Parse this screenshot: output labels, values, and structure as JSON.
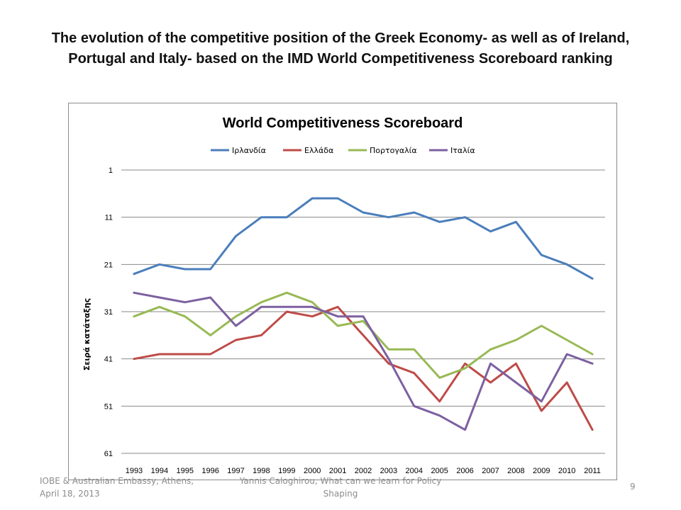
{
  "slide": {
    "title": "The evolution of the competitive position of the Greek Economy- as well as of Ireland, Portugal and Italy- based on the IMD   World Competitiveness Scoreboard ranking",
    "footer_left": "IOBE & Australian Embassy, Athens, April 18, 2013",
    "footer_center": "Yannis Caloghirou, What can we learn for Policy Shaping",
    "page_number": "9"
  },
  "chart_data": {
    "type": "line",
    "title": "World Competitiveness Scoreboard",
    "xlabel": "",
    "ylabel": "Σειρά κατάταξης",
    "y_inverted": true,
    "ylim": [
      1,
      61
    ],
    "yticks": [
      1,
      11,
      21,
      31,
      41,
      51,
      61
    ],
    "grid": "horizontal",
    "legend_position": "top",
    "categories": [
      "1993",
      "1994",
      "1995",
      "1996",
      "1997",
      "1998",
      "1999",
      "2000",
      "2001",
      "2002",
      "2003",
      "2004",
      "2005",
      "2006",
      "2007",
      "2008",
      "2009",
      "2010",
      "2011"
    ],
    "series": [
      {
        "name": "Ιρλανδία",
        "color": "#4a7ebb",
        "values": [
          23,
          21,
          22,
          22,
          15,
          11,
          11,
          7,
          7,
          10,
          11,
          10,
          12,
          11,
          14,
          12,
          19,
          21,
          24
        ]
      },
      {
        "name": "Ελλάδα",
        "color": "#be4b48",
        "values": [
          41,
          40,
          40,
          40,
          37,
          36,
          31,
          32,
          30,
          36,
          42,
          44,
          50,
          42,
          46,
          42,
          52,
          46,
          56
        ]
      },
      {
        "name": "Πορτογαλία",
        "color": "#98b954",
        "values": [
          32,
          30,
          32,
          36,
          32,
          29,
          27,
          29,
          34,
          33,
          39,
          39,
          45,
          43,
          39,
          37,
          34,
          37,
          40
        ]
      },
      {
        "name": "Ιταλία",
        "color": "#7d60a0",
        "values": [
          27,
          28,
          29,
          28,
          34,
          30,
          30,
          30,
          32,
          32,
          41,
          51,
          53,
          56,
          42,
          46,
          50,
          40,
          42
        ]
      }
    ]
  }
}
